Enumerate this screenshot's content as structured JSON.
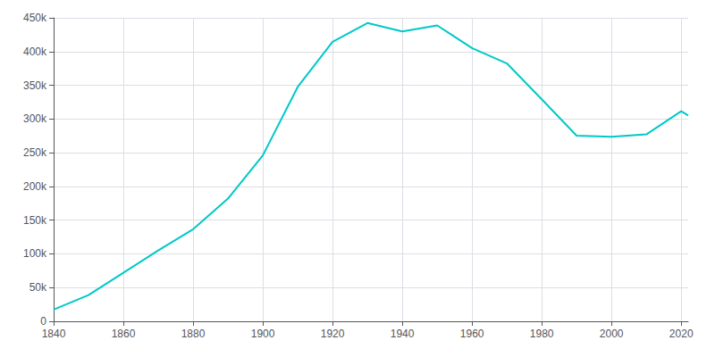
{
  "chart_data": {
    "type": "line",
    "x": [
      1840,
      1850,
      1860,
      1870,
      1880,
      1890,
      1900,
      1910,
      1920,
      1930,
      1940,
      1950,
      1960,
      1970,
      1980,
      1990,
      2000,
      2010,
      2020,
      2022
    ],
    "values": [
      17290,
      38894,
      71941,
      105059,
      136508,
      181830,
      246070,
      347469,
      414524,
      442337,
      429760,
      438776,
      405220,
      382417,
      329248,
      275221,
      273546,
      277140,
      311549,
      305326
    ],
    "color": "#00c8c8",
    "xlim": [
      1840,
      2022
    ],
    "xticks": [
      1840,
      1860,
      1880,
      1900,
      1920,
      1940,
      1960,
      1980,
      2000,
      2020
    ],
    "ylim": [
      0,
      450000
    ],
    "yticks": [
      0,
      {
        "value": 50000,
        "label": "50k"
      },
      {
        "value": 100000,
        "label": "100k"
      },
      {
        "value": 150000,
        "label": "150k"
      },
      {
        "value": 200000,
        "label": "200k"
      },
      {
        "value": 250000,
        "label": "250k"
      },
      {
        "value": 300000,
        "label": "300k"
      },
      {
        "value": 350000,
        "label": "350k"
      },
      {
        "value": 400000,
        "label": "400k"
      },
      {
        "value": 450000,
        "label": "450k"
      }
    ],
    "grid": true
  }
}
